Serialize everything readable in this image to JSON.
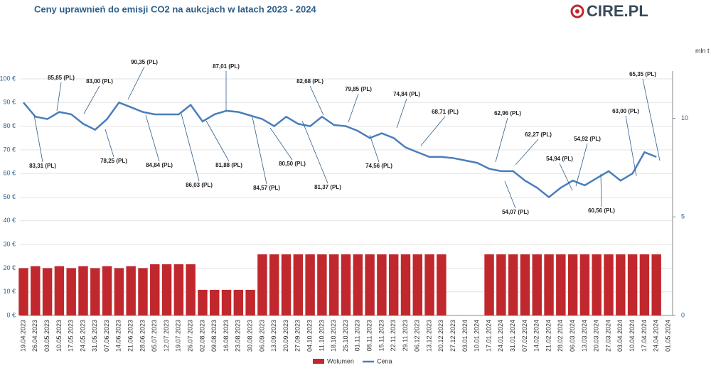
{
  "chart_data": {
    "type": "combo",
    "title": "Ceny uprawnień do emisji CO2 na aukcjach w latach 2023 - 2024",
    "logo": "CIRE.PL",
    "y2_label": "mln t",
    "categories": [
      "19.04.2023",
      "26.04.2023",
      "03.05.2023",
      "10.05.2023",
      "17.05.2023",
      "24.05.2023",
      "31.05.2023",
      "07.06.2023",
      "14.06.2023",
      "21.06.2023",
      "28.06.2023",
      "05.07.2023",
      "12.07.2023",
      "19.07.2023",
      "26.07.2023",
      "02.08.2023",
      "09.08.2023",
      "16.08.2023",
      "23.08.2023",
      "30.08.2023",
      "06.09.2023",
      "13.09.2023",
      "20.09.2023",
      "27.09.2023",
      "04.10.2023",
      "11.10.2023",
      "18.10.2023",
      "25.10.2023",
      "01.11.2023",
      "08.11.2023",
      "15.11.2023",
      "22.11.2023",
      "29.11.2023",
      "06.12.2023",
      "13.12.2023",
      "20.12.2023",
      "27.12.2023",
      "03.01.2024",
      "10.01.2024",
      "17.01.2024",
      "24.01.2024",
      "31.01.2024",
      "07.02.2024",
      "14.02.2024",
      "21.02.2024",
      "28.02.2024",
      "06.03.2024",
      "13.03.2024",
      "20.03.2024",
      "27.03.2024",
      "03.04.2024",
      "10.04.2024",
      "17.04.2024",
      "24.04.2024",
      "01.05.2024"
    ],
    "series": [
      {
        "name": "Wolumen",
        "color": "#c0282d",
        "axis": "y2",
        "values": [
          2.4,
          2.5,
          2.4,
          2.5,
          2.4,
          2.5,
          2.4,
          2.5,
          2.4,
          2.5,
          2.4,
          2.6,
          2.6,
          2.6,
          2.6,
          1.3,
          1.3,
          1.3,
          1.3,
          1.3,
          3.1,
          3.1,
          3.1,
          3.1,
          3.1,
          3.1,
          3.1,
          3.1,
          3.1,
          3.1,
          3.1,
          3.1,
          3.1,
          3.1,
          3.1,
          3.1,
          null,
          null,
          null,
          3.1,
          3.1,
          3.1,
          3.1,
          3.1,
          3.1,
          3.1,
          3.1,
          3.1,
          3.1,
          3.1,
          3.1,
          3.1,
          3.1,
          3.1,
          null
        ]
      },
      {
        "name": "Cena",
        "color": "#4a7ebb",
        "values": [
          90,
          84,
          83,
          86,
          85,
          81,
          78.5,
          83,
          90,
          88,
          86,
          85,
          85,
          85,
          89,
          82,
          85,
          86.5,
          86,
          84.5,
          83,
          80,
          84,
          81,
          80,
          84,
          80.5,
          80,
          78,
          75,
          77,
          75,
          71,
          69,
          67,
          67,
          66.5,
          65.5,
          64.5,
          62,
          61,
          61,
          57,
          54,
          50,
          54,
          57,
          55,
          58,
          61,
          57,
          60,
          69,
          67,
          null
        ]
      }
    ],
    "ylim": [
      0,
      100
    ],
    "yticks": [
      {
        "value": 0,
        "label": "0 €"
      },
      {
        "value": 10,
        "label": "10 €"
      },
      {
        "value": 20,
        "label": "20 €"
      },
      {
        "value": 30,
        "label": "30 €"
      },
      {
        "value": 40,
        "label": "40 €"
      },
      {
        "value": 50,
        "label": "50 €"
      },
      {
        "value": 60,
        "label": "60 €"
      },
      {
        "value": 70,
        "label": "70 €"
      },
      {
        "value": 80,
        "label": "80 €"
      },
      {
        "value": 90,
        "label": "90 €"
      },
      {
        "value": 100,
        "label": "100 €"
      }
    ],
    "y2lim": [
      0,
      12
    ],
    "y2ticks": [
      0,
      5,
      10
    ],
    "grid": true,
    "legend": "bottom",
    "annotations": [
      "85,85 (PL)",
      "83,00 (PL)",
      "90,35 (PL)",
      "87,01 (PL)",
      "82,68 (PL)",
      "79,85 (PL)",
      "74,84 (PL)",
      "68,71 (PL)",
      "62,96 (PL)",
      "62,27 (PL)",
      "54,94 (PL)",
      "54,92 (PL)",
      "63,00 (PL)",
      "65,35 (PL)",
      "83,31 (PL)",
      "78,25 (PL)",
      "84,84 (PL)",
      "86,03 (PL)",
      "81,88 (PL)",
      "84,57 (PL)",
      "80,50 (PL)",
      "81,37 (PL)",
      "74,56 (PL)",
      "54,07 (PL)",
      "60,56 (PL)"
    ]
  }
}
